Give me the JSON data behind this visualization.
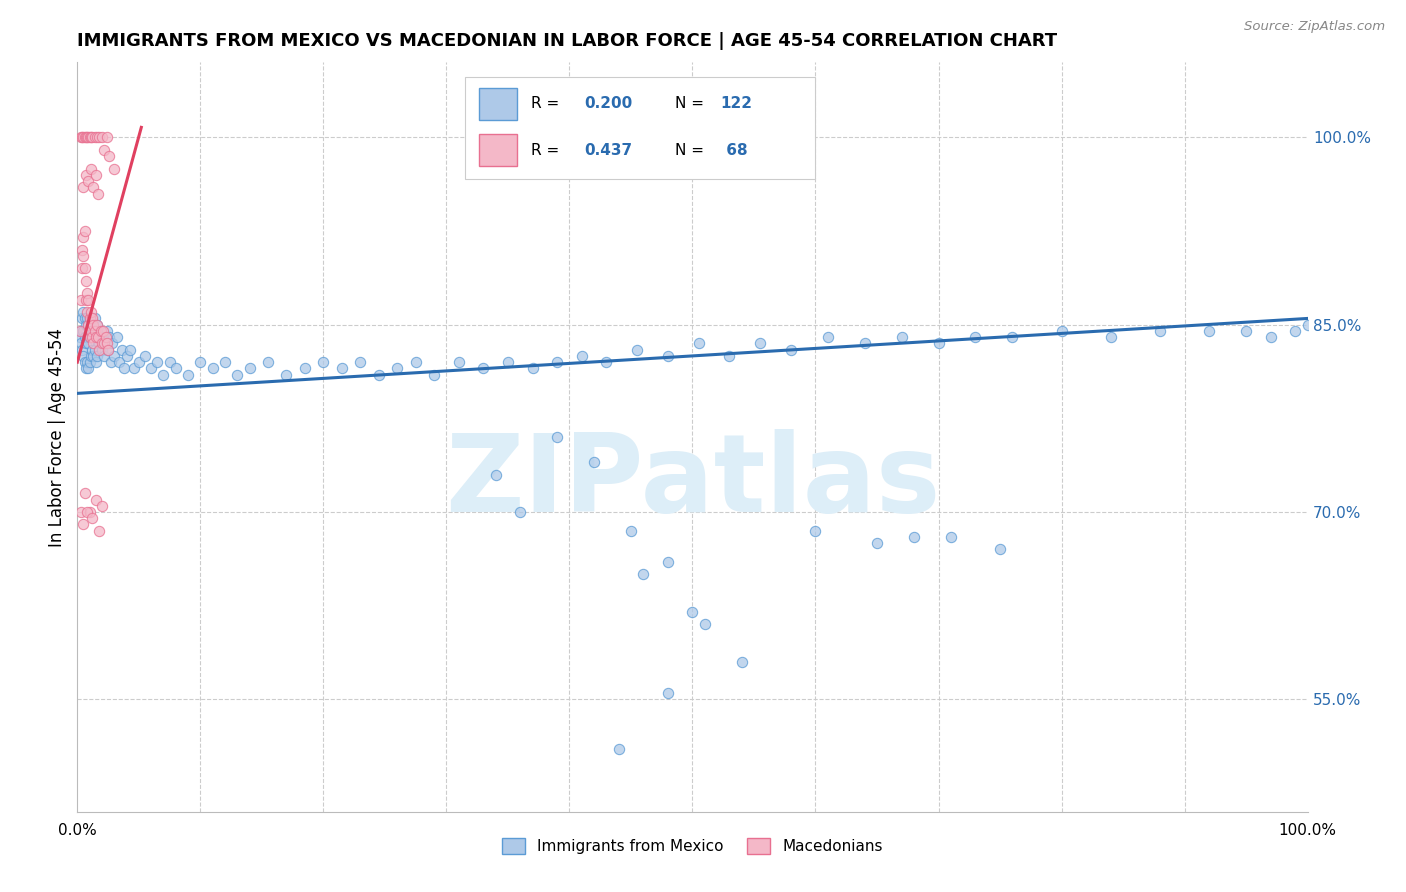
{
  "title": "IMMIGRANTS FROM MEXICO VS MACEDONIAN IN LABOR FORCE | AGE 45-54 CORRELATION CHART",
  "source": "Source: ZipAtlas.com",
  "ylabel": "In Labor Force | Age 45-54",
  "xlim": [
    0.0,
    1.0
  ],
  "ylim": [
    0.46,
    1.06
  ],
  "y_ticks_right": [
    0.55,
    0.7,
    0.85,
    1.0
  ],
  "y_tick_labels_right": [
    "55.0%",
    "70.0%",
    "85.0%",
    "100.0%"
  ],
  "x_ticks": [
    0.0,
    0.5,
    1.0
  ],
  "x_tick_labels": [
    "0.0%",
    "",
    "100.0%"
  ],
  "mexico_color_face": "#aec9e8",
  "mexico_color_edge": "#5b9bd5",
  "maced_color_face": "#f4b8c8",
  "maced_color_edge": "#e87090",
  "trend_mexico_color": "#2a6baf",
  "trend_maced_color": "#e04060",
  "watermark": "ZIPatlas",
  "watermark_color": "#ddeef8",
  "background_color": "#ffffff",
  "grid_color": "#cccccc",
  "title_fontsize": 13,
  "axis_label_fontsize": 12,
  "tick_fontsize": 11,
  "trend_mexico_x0": 0.0,
  "trend_mexico_x1": 1.0,
  "trend_mexico_y0": 0.795,
  "trend_mexico_y1": 0.855,
  "trend_maced_x0": 0.0,
  "trend_maced_x1": 0.052,
  "trend_maced_y0": 0.82,
  "trend_maced_y1": 1.008,
  "mexico_x": [
    0.002,
    0.003,
    0.003,
    0.004,
    0.004,
    0.005,
    0.005,
    0.005,
    0.006,
    0.006,
    0.006,
    0.007,
    0.007,
    0.007,
    0.008,
    0.008,
    0.008,
    0.009,
    0.009,
    0.009,
    0.01,
    0.01,
    0.01,
    0.011,
    0.011,
    0.012,
    0.012,
    0.013,
    0.013,
    0.014,
    0.014,
    0.015,
    0.015,
    0.016,
    0.016,
    0.017,
    0.018,
    0.019,
    0.02,
    0.021,
    0.022,
    0.023,
    0.024,
    0.025,
    0.026,
    0.027,
    0.028,
    0.03,
    0.032,
    0.034,
    0.036,
    0.038,
    0.04,
    0.043,
    0.046,
    0.05,
    0.055,
    0.06,
    0.065,
    0.07,
    0.075,
    0.08,
    0.09,
    0.1,
    0.11,
    0.12,
    0.13,
    0.14,
    0.155,
    0.17,
    0.185,
    0.2,
    0.215,
    0.23,
    0.245,
    0.26,
    0.275,
    0.29,
    0.31,
    0.33,
    0.35,
    0.37,
    0.39,
    0.41,
    0.43,
    0.455,
    0.48,
    0.505,
    0.53,
    0.555,
    0.58,
    0.61,
    0.64,
    0.67,
    0.7,
    0.73,
    0.76,
    0.8,
    0.84,
    0.88,
    0.92,
    0.95,
    0.97,
    0.99,
    1.0,
    0.39,
    0.42,
    0.46,
    0.5,
    0.54,
    0.34,
    0.36,
    0.48,
    0.51,
    0.45,
    0.6,
    0.65,
    0.68,
    0.71,
    0.75,
    0.48,
    0.44
  ],
  "mexico_y": [
    0.84,
    0.845,
    0.835,
    0.855,
    0.83,
    0.86,
    0.845,
    0.825,
    0.855,
    0.84,
    0.82,
    0.85,
    0.835,
    0.815,
    0.855,
    0.84,
    0.82,
    0.85,
    0.835,
    0.815,
    0.855,
    0.84,
    0.82,
    0.845,
    0.825,
    0.85,
    0.83,
    0.845,
    0.825,
    0.855,
    0.83,
    0.845,
    0.82,
    0.85,
    0.825,
    0.84,
    0.835,
    0.845,
    0.83,
    0.84,
    0.825,
    0.835,
    0.845,
    0.83,
    0.84,
    0.82,
    0.835,
    0.825,
    0.84,
    0.82,
    0.83,
    0.815,
    0.825,
    0.83,
    0.815,
    0.82,
    0.825,
    0.815,
    0.82,
    0.81,
    0.82,
    0.815,
    0.81,
    0.82,
    0.815,
    0.82,
    0.81,
    0.815,
    0.82,
    0.81,
    0.815,
    0.82,
    0.815,
    0.82,
    0.81,
    0.815,
    0.82,
    0.81,
    0.82,
    0.815,
    0.82,
    0.815,
    0.82,
    0.825,
    0.82,
    0.83,
    0.825,
    0.835,
    0.825,
    0.835,
    0.83,
    0.84,
    0.835,
    0.84,
    0.835,
    0.84,
    0.84,
    0.845,
    0.84,
    0.845,
    0.845,
    0.845,
    0.84,
    0.845,
    0.85,
    0.76,
    0.74,
    0.65,
    0.62,
    0.58,
    0.73,
    0.7,
    0.66,
    0.61,
    0.685,
    0.685,
    0.675,
    0.68,
    0.68,
    0.67,
    0.555,
    0.51
  ],
  "maced_x": [
    0.002,
    0.003,
    0.004,
    0.004,
    0.005,
    0.005,
    0.006,
    0.006,
    0.007,
    0.007,
    0.008,
    0.008,
    0.009,
    0.009,
    0.01,
    0.01,
    0.011,
    0.011,
    0.012,
    0.012,
    0.013,
    0.013,
    0.014,
    0.015,
    0.016,
    0.017,
    0.018,
    0.019,
    0.02,
    0.021,
    0.022,
    0.023,
    0.024,
    0.025,
    0.003,
    0.004,
    0.005,
    0.006,
    0.007,
    0.008,
    0.009,
    0.01,
    0.011,
    0.012,
    0.014,
    0.016,
    0.018,
    0.02,
    0.022,
    0.024,
    0.026,
    0.03,
    0.005,
    0.007,
    0.009,
    0.011,
    0.013,
    0.015,
    0.017,
    0.003,
    0.006,
    0.01,
    0.015,
    0.02,
    0.005,
    0.008,
    0.012,
    0.018
  ],
  "maced_y": [
    0.845,
    0.87,
    0.895,
    0.91,
    0.92,
    0.905,
    0.925,
    0.895,
    0.87,
    0.885,
    0.86,
    0.875,
    0.87,
    0.85,
    0.855,
    0.84,
    0.86,
    0.845,
    0.855,
    0.84,
    0.85,
    0.835,
    0.845,
    0.84,
    0.85,
    0.84,
    0.83,
    0.845,
    0.835,
    0.845,
    0.835,
    0.84,
    0.835,
    0.83,
    1.0,
    1.0,
    1.0,
    1.0,
    1.0,
    1.0,
    1.0,
    1.0,
    1.0,
    1.0,
    1.0,
    1.0,
    1.0,
    1.0,
    0.99,
    1.0,
    0.985,
    0.975,
    0.96,
    0.97,
    0.965,
    0.975,
    0.96,
    0.97,
    0.955,
    0.7,
    0.715,
    0.7,
    0.71,
    0.705,
    0.69,
    0.7,
    0.695,
    0.685
  ]
}
